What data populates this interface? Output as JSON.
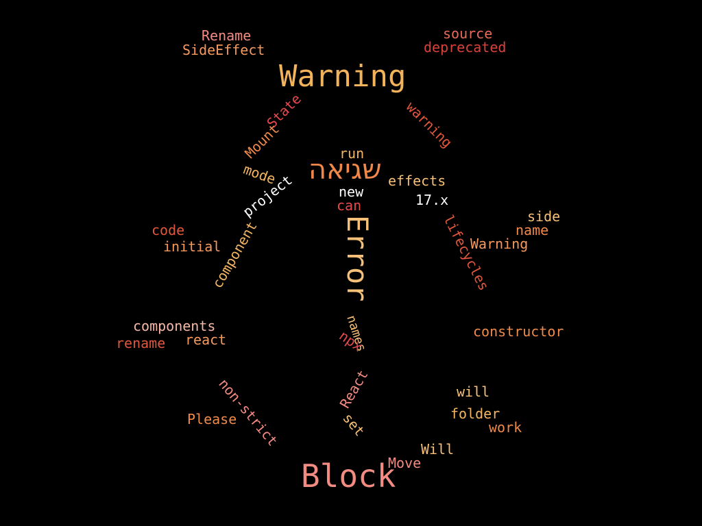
{
  "words": [
    {
      "text": "Rename",
      "color": "#f28b82"
    },
    {
      "text": "SideEffect",
      "color": "#f59a5f"
    },
    {
      "text": "source",
      "color": "#e66b5a"
    },
    {
      "text": "deprecated",
      "color": "#d9413b"
    },
    {
      "text": "Warning",
      "color": "#f2b35a"
    },
    {
      "text": "State",
      "color": "#e5484d"
    },
    {
      "text": "warning",
      "color": "#e0573e"
    },
    {
      "text": "Mount",
      "color": "#f08a4b"
    },
    {
      "text": "run",
      "color": "#f5b562"
    },
    {
      "text": "mode",
      "color": "#f5b562"
    },
    {
      "text": "שגיאה",
      "color": "#f0884a"
    },
    {
      "text": "effects",
      "color": "#f7c078"
    },
    {
      "text": "project",
      "color": "#ffffff"
    },
    {
      "text": "new",
      "color": "#ffffff"
    },
    {
      "text": "17.x",
      "color": "#ffffff"
    },
    {
      "text": "can",
      "color": "#e5484d"
    },
    {
      "text": "side",
      "color": "#f7c078"
    },
    {
      "text": "name",
      "color": "#f08a4b"
    },
    {
      "text": "code",
      "color": "#e0573e"
    },
    {
      "text": "Error",
      "color": "#f7c078"
    },
    {
      "text": "lifecycles",
      "color": "#e0573e"
    },
    {
      "text": "initial",
      "color": "#f59a5f"
    },
    {
      "text": "Warning",
      "color": "#f59a5f"
    },
    {
      "text": "component",
      "color": "#f5b562"
    },
    {
      "text": "components",
      "color": "#f7b8a8"
    },
    {
      "text": "names",
      "color": "#f7c078"
    },
    {
      "text": "constructor",
      "color": "#f08a4b"
    },
    {
      "text": "react",
      "color": "#f59a5f"
    },
    {
      "text": "rename",
      "color": "#e0573e"
    },
    {
      "text": "npx",
      "color": "#e5484d"
    },
    {
      "text": "React",
      "color": "#f28b82"
    },
    {
      "text": "will",
      "color": "#f7c078"
    },
    {
      "text": "non-strict",
      "color": "#f28b82"
    },
    {
      "text": "folder",
      "color": "#f5b562"
    },
    {
      "text": "Please",
      "color": "#f08a4b"
    },
    {
      "text": "work",
      "color": "#f08a4b"
    },
    {
      "text": "set",
      "color": "#f7c078"
    },
    {
      "text": "Will",
      "color": "#f7c078"
    },
    {
      "text": "Move",
      "color": "#f28b82"
    },
    {
      "text": "Block",
      "color": "#f28b82"
    }
  ]
}
